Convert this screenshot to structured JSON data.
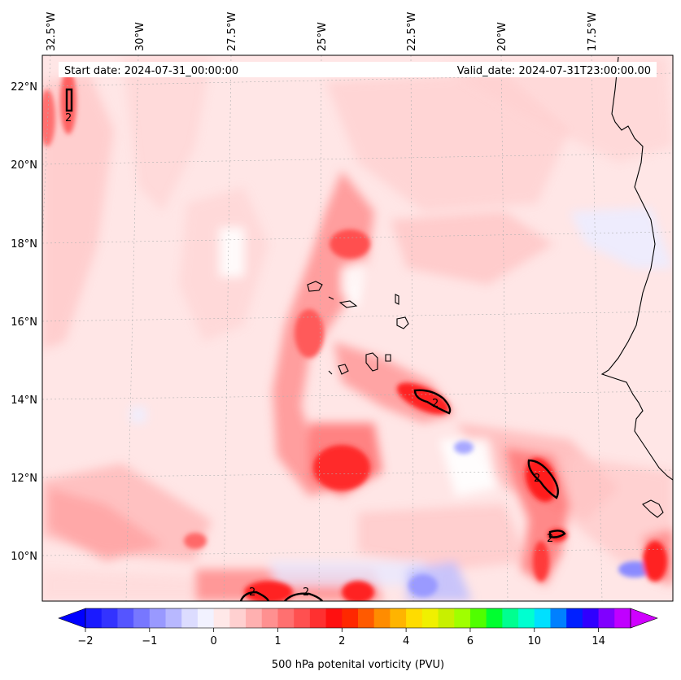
{
  "header": {
    "start_date": "Start date: 2024-07-31_00:00:00",
    "valid_date": "Valid_date: 2024-07-31T23:00:00.00"
  },
  "longitudes": [
    "32.5°W",
    "30°W",
    "27.5°W",
    "25°W",
    "22.5°W",
    "20°W",
    "17.5°W"
  ],
  "latitudes": [
    "22°N",
    "20°N",
    "18°N",
    "16°N",
    "14°N",
    "12°N",
    "10°N"
  ],
  "contour_label": "2",
  "colorbar": {
    "label": "500 hPa potenital vorticity (PVU)",
    "ticks": [
      "−2",
      "−1",
      "0",
      "1",
      "2",
      "4",
      "6",
      "10",
      "14"
    ],
    "colors": [
      "#1a1aff",
      "#3333ff",
      "#5555ff",
      "#7777ff",
      "#9999ff",
      "#b8b8ff",
      "#dcdcff",
      "#f2f2ff",
      "#ffe8e8",
      "#ffd0d0",
      "#ffb0b0",
      "#ff9090",
      "#ff7070",
      "#ff5050",
      "#ff3030",
      "#ff1010",
      "#ff2800",
      "#ff5a00",
      "#ff8c00",
      "#ffb400",
      "#ffdc00",
      "#f0f000",
      "#c8f000",
      "#a0ff00",
      "#50ff00",
      "#00ff30",
      "#00ff90",
      "#00ffd0",
      "#00e0ff",
      "#0080ff",
      "#0020ff",
      "#3000ff",
      "#8000ff",
      "#c000ff"
    ],
    "under_color": "#0000ff",
    "over_color": "#d000ff"
  }
}
